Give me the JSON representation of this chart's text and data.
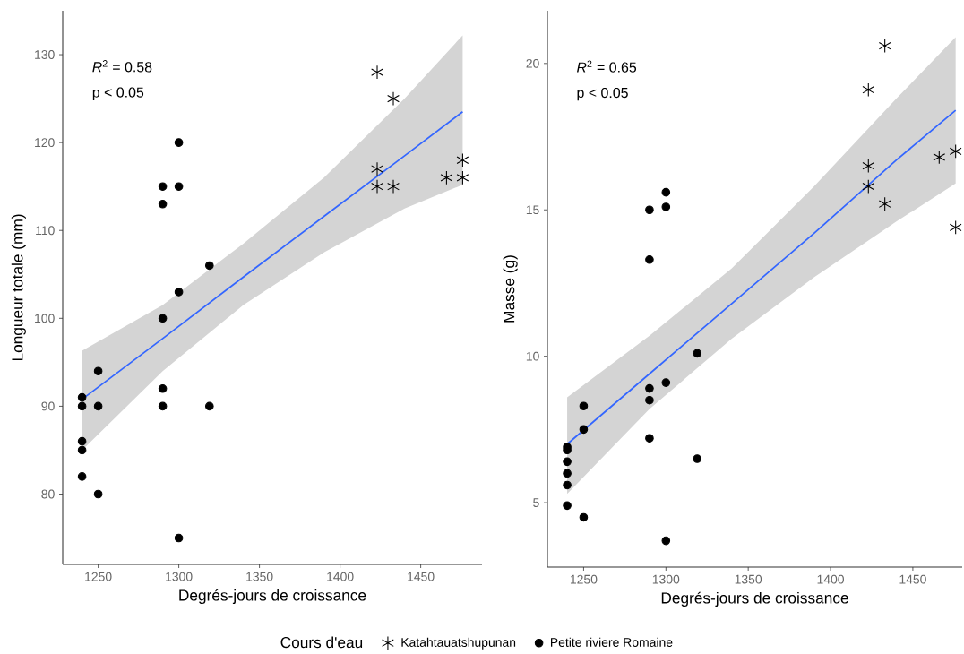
{
  "chart_data": [
    {
      "type": "scatter",
      "xlabel": "Degrés-jours de croissance",
      "ylabel": "Longueur totale (mm)",
      "xlim": [
        1228,
        1488
      ],
      "ylim": [
        72,
        135
      ],
      "xticks": [
        1250,
        1300,
        1350,
        1400,
        1450
      ],
      "yticks": [
        80,
        90,
        100,
        110,
        120,
        130
      ],
      "grid": false,
      "legend": "bottom",
      "legend_title": "Cours d'eau",
      "annotations": [
        "*R*$^{2}$ = 0.58",
        "p < 0.05"
      ],
      "series": [
        {
          "name": "Katahtauatshupunan",
          "color": "#000000",
          "marker": "cross",
          "x": [
            1423,
            1433,
            1423,
            1423,
            1433,
            1466,
            1476,
            1476
          ],
          "values": [
            128,
            125,
            117,
            115,
            115,
            116,
            118,
            116
          ]
        },
        {
          "name": "Petite riviere Romaine",
          "color": "#000000",
          "marker": "circle",
          "x": [
            1240,
            1240,
            1240,
            1240,
            1240,
            1250,
            1250,
            1250,
            1290,
            1290,
            1290,
            1290,
            1290,
            1300,
            1300,
            1300,
            1300,
            1319,
            1319
          ],
          "values": [
            91,
            90,
            86,
            85,
            82,
            94,
            90,
            80,
            115,
            113,
            100,
            92,
            90,
            120,
            115,
            103,
            75,
            106,
            90
          ]
        },
        {
          "type": "line",
          "color": "#3366ff",
          "marker": "none",
          "x": [
            1240,
            1290,
            1340,
            1390,
            1440,
            1476
          ],
          "values": [
            90.8,
            97.7,
            104.7,
            111.6,
            118.5,
            123.5
          ],
          "lower": [
            85.0,
            94.0,
            101.5,
            107.5,
            112.5,
            115.2
          ],
          "upper": [
            96.3,
            101.5,
            108.5,
            116.0,
            125.0,
            132.2
          ]
        }
      ]
    },
    {
      "type": "scatter",
      "xlabel": "Degrés-jours de croissance",
      "ylabel": "Masse (g)",
      "xlim": [
        1228,
        1480
      ],
      "ylim": [
        2.8,
        21.8
      ],
      "xticks": [
        1250,
        1300,
        1350,
        1400,
        1450
      ],
      "yticks": [
        5,
        10,
        15,
        20
      ],
      "grid": false,
      "annotations": [
        "*R*$^{2}$ = 0.65",
        "p < 0.05"
      ],
      "series": [
        {
          "color": "#000000",
          "marker": "cross",
          "x": [
            1433,
            1423,
            1423,
            1423,
            1433,
            1466,
            1476,
            1476
          ],
          "values": [
            20.6,
            19.1,
            16.5,
            15.8,
            15.2,
            16.8,
            17.0,
            14.4
          ]
        },
        {
          "color": "#000000",
          "marker": "circle",
          "x": [
            1240,
            1240,
            1240,
            1240,
            1240,
            1240,
            1250,
            1250,
            1250,
            1290,
            1290,
            1290,
            1290,
            1290,
            1300,
            1300,
            1300,
            1300,
            1319,
            1319
          ],
          "values": [
            6.9,
            6.8,
            6.4,
            6.0,
            5.6,
            4.9,
            8.3,
            7.5,
            4.5,
            15.0,
            13.3,
            8.9,
            8.5,
            7.2,
            15.6,
            15.1,
            9.1,
            3.7,
            10.1,
            6.5
          ]
        },
        {
          "type": "line",
          "color": "#3366ff",
          "marker": "none",
          "x": [
            1240,
            1290,
            1340,
            1390,
            1440,
            1476
          ],
          "values": [
            7.0,
            9.4,
            11.8,
            14.2,
            16.7,
            18.4
          ],
          "lower": [
            5.3,
            8.2,
            10.6,
            12.7,
            14.6,
            15.9
          ],
          "upper": [
            8.6,
            10.7,
            13.0,
            15.8,
            18.8,
            20.9
          ]
        }
      ]
    }
  ]
}
